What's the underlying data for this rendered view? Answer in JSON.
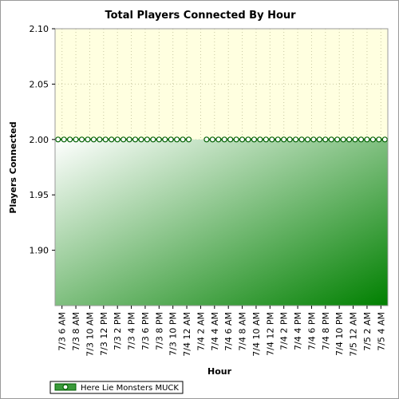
{
  "chart_data": {
    "type": "area",
    "title": "Total Players Connected By Hour",
    "xlabel": "Hour",
    "ylabel": "Players Connected",
    "ylim": [
      1.85,
      2.1
    ],
    "y_ticks": [
      "2.10",
      "2.05",
      "2.00",
      "1.95",
      "1.90"
    ],
    "y_tick_values": [
      2.1,
      2.05,
      2.0,
      1.95,
      1.9
    ],
    "x_tick_labels": [
      "7/3 6 AM",
      "7/3 8 AM",
      "7/3 10 AM",
      "7/3 12 PM",
      "7/3 2 PM",
      "7/3 4 PM",
      "7/3 6 PM",
      "7/3 8 PM",
      "7/3 10 PM",
      "7/4 12 AM",
      "7/4 2 AM",
      "7/4 4 AM",
      "7/4 6 AM",
      "7/4 8 AM",
      "7/4 10 AM",
      "7/4 12 PM",
      "7/4 2 PM",
      "7/4 4 PM",
      "7/4 6 PM",
      "7/4 8 PM",
      "7/4 10 PM",
      "7/5 12 AM",
      "7/5 2 AM",
      "7/5 4 AM"
    ],
    "series": [
      {
        "name": "Here Lie Monsters MUCK",
        "values": [
          2,
          2,
          2,
          2,
          2,
          2,
          2,
          2,
          2,
          2,
          2,
          2,
          2,
          2,
          2,
          2,
          2,
          2,
          2,
          2,
          2,
          2,
          2,
          null,
          null,
          2,
          2,
          2,
          2,
          2,
          2,
          2,
          2,
          2,
          2,
          2,
          2,
          2,
          2,
          2,
          2,
          2,
          2,
          2,
          2,
          2,
          2,
          2,
          2,
          2,
          2,
          2,
          2,
          2,
          2,
          2
        ]
      }
    ],
    "grid": true,
    "legend_position": "bottom-left",
    "colors": {
      "upper_background": "#ffffe0",
      "area_light": "#ffffff",
      "area_dark": "#008000",
      "line": "#008000"
    }
  }
}
